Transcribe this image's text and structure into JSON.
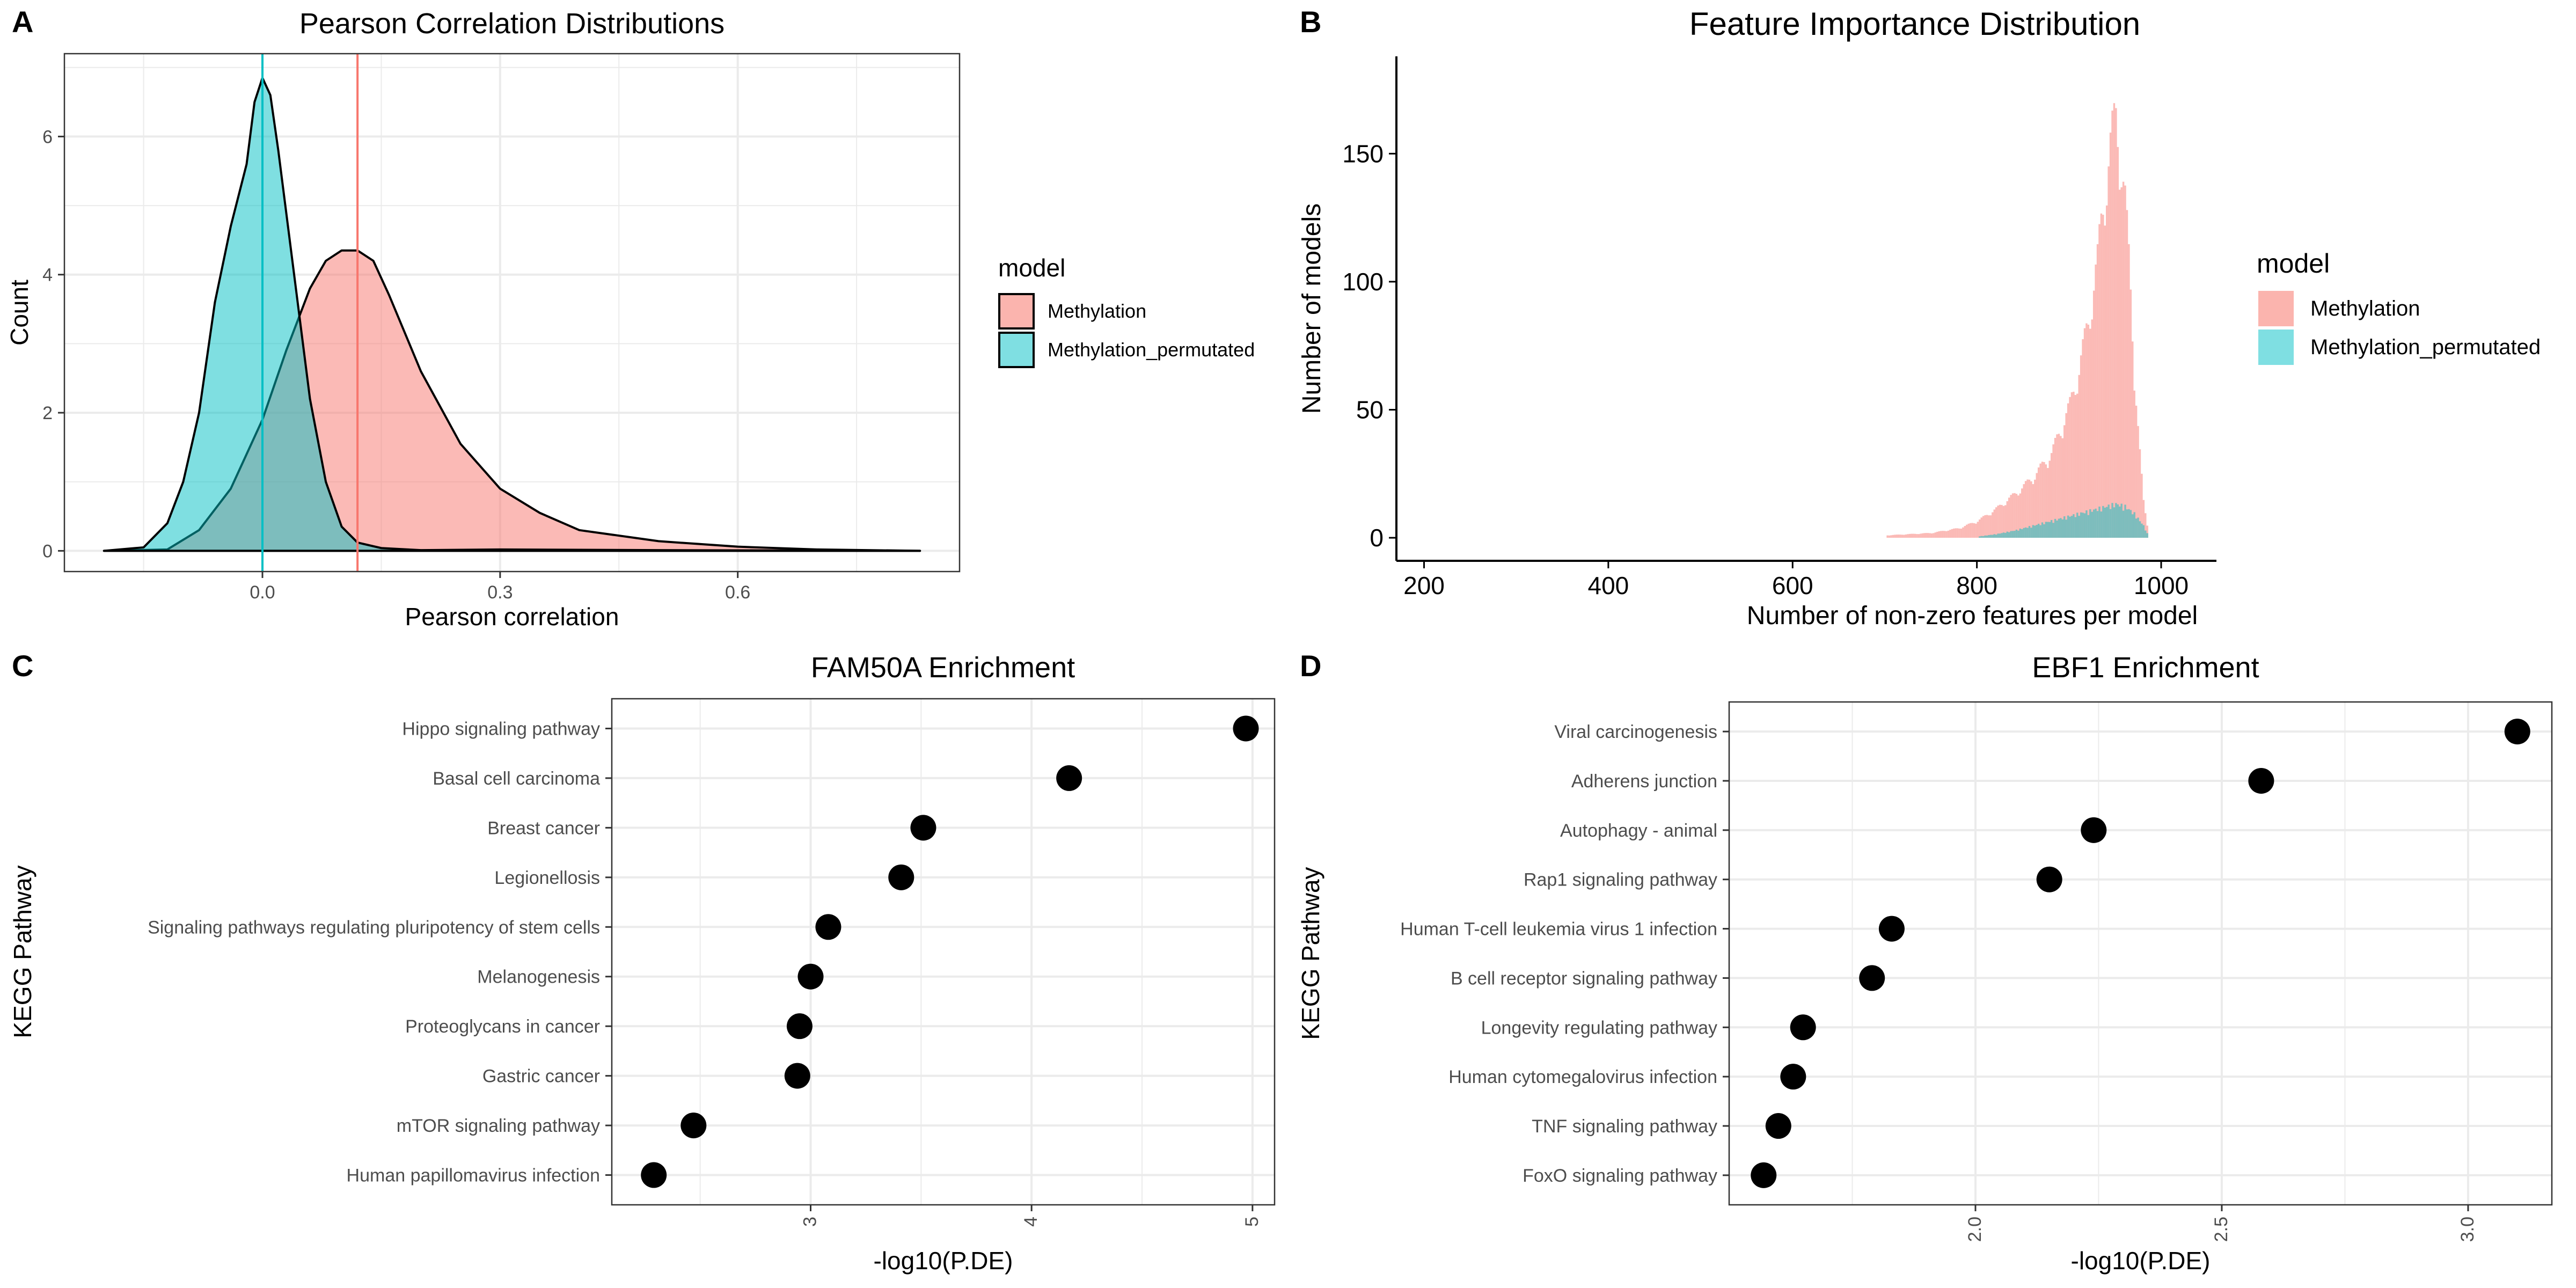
{
  "panels": [
    {
      "label": "A",
      "title": "Pearson Correlation Distributions"
    },
    {
      "label": "B",
      "title": "Feature Importance Distribution"
    },
    {
      "label": "C",
      "title": "FAM50A Enrichment"
    },
    {
      "label": "D",
      "title": "EBF1 Enrichment"
    }
  ],
  "colors": {
    "methylation": "#F8766D",
    "methylation_permutated": "#00BFC4",
    "methylation_fill": "#FBB4AE",
    "permutated_fill": "#7FDFE2",
    "overlap_fill": "#7DB7B4",
    "grid": "#EBEBEB",
    "point": "#000000"
  },
  "chart_data": [
    {
      "type": "area",
      "title": "Pearson Correlation Distributions",
      "xlabel": "Pearson correlation",
      "ylabel": "Count",
      "xlim": [
        -0.25,
        0.88
      ],
      "ylim": [
        -0.3,
        7.2
      ],
      "xticks": [
        "0.0",
        "0.3",
        "0.6"
      ],
      "xtick_values": [
        0,
        0.3,
        0.6
      ],
      "yticks": [
        "0",
        "2",
        "4",
        "6"
      ],
      "ytick_values": [
        0,
        2,
        4,
        6
      ],
      "grid": true,
      "legend": {
        "title": "model",
        "placement": "right",
        "entries": [
          "Methylation",
          "Methylation_permutated"
        ]
      },
      "vlines": [
        {
          "series": "Methylation",
          "x": 0.12
        },
        {
          "series": "Methylation_permutated",
          "x": 0.0
        }
      ],
      "series": [
        {
          "name": "Methylation",
          "x": [
            -0.2,
            -0.12,
            -0.08,
            -0.04,
            0.0,
            0.03,
            0.06,
            0.08,
            0.1,
            0.12,
            0.14,
            0.16,
            0.2,
            0.25,
            0.3,
            0.35,
            0.4,
            0.5,
            0.6,
            0.7,
            0.83
          ],
          "y": [
            0,
            0.02,
            0.3,
            0.9,
            1.9,
            2.9,
            3.8,
            4.2,
            4.35,
            4.35,
            4.2,
            3.7,
            2.6,
            1.55,
            0.9,
            0.55,
            0.3,
            0.14,
            0.06,
            0.02,
            0
          ]
        },
        {
          "name": "Methylation_permutated",
          "x": [
            -0.2,
            -0.15,
            -0.12,
            -0.1,
            -0.08,
            -0.06,
            -0.04,
            -0.02,
            -0.01,
            0.0,
            0.01,
            0.02,
            0.04,
            0.06,
            0.08,
            0.1,
            0.12,
            0.15,
            0.2,
            0.3,
            0.5,
            0.83
          ],
          "y": [
            0,
            0.05,
            0.4,
            1.0,
            2.0,
            3.6,
            4.7,
            5.6,
            6.5,
            6.85,
            6.6,
            5.8,
            4.0,
            2.2,
            1.0,
            0.35,
            0.12,
            0.04,
            0.01,
            0.02,
            0.01,
            0
          ]
        }
      ]
    },
    {
      "type": "bar",
      "title": "Feature Importance Distribution",
      "xlabel": "Number of non-zero features per model",
      "ylabel": "Number of models",
      "xlim": [
        170,
        1060
      ],
      "ylim": [
        -9,
        188
      ],
      "xticks": [
        "200",
        "400",
        "600",
        "800",
        "1000"
      ],
      "xtick_values": [
        200,
        400,
        600,
        800,
        1000
      ],
      "yticks": [
        "0",
        "50",
        "100",
        "150"
      ],
      "ytick_values": [
        0,
        50,
        100,
        150
      ],
      "grid": false,
      "legend": {
        "title": "model",
        "placement": "right",
        "entries": [
          "Methylation",
          "Methylation_permutated"
        ]
      },
      "series": [
        {
          "name": "Methylation",
          "x": [
            700,
            750,
            780,
            800,
            820,
            840,
            860,
            880,
            900,
            910,
            920,
            930,
            935,
            940,
            945,
            950,
            955,
            960,
            965,
            970,
            975,
            980,
            985
          ],
          "y": [
            1,
            2,
            4,
            7,
            12,
            18,
            25,
            35,
            55,
            70,
            90,
            115,
            135,
            150,
            165,
            175,
            160,
            140,
            110,
            70,
            40,
            15,
            3
          ]
        },
        {
          "name": "Methylation_permutated",
          "x": [
            800,
            820,
            840,
            860,
            880,
            900,
            920,
            940,
            950,
            960,
            970,
            980,
            985
          ],
          "y": [
            0.5,
            1.5,
            3,
            5,
            7,
            9,
            11,
            13,
            14,
            13,
            10,
            5,
            1
          ]
        }
      ]
    },
    {
      "type": "scatter",
      "title": "FAM50A Enrichment",
      "xlabel": "-log10(P.DE)",
      "ylabel": "KEGG Pathway",
      "xlim": [
        2.1,
        5.1
      ],
      "xticks": [
        "3",
        "4",
        "5"
      ],
      "xtick_values": [
        3,
        4,
        5
      ],
      "grid": true,
      "categories": [
        "Hippo signaling pathway",
        "Basal cell carcinoma",
        "Breast cancer",
        "Legionellosis",
        "Signaling pathways regulating pluripotency of stem cells",
        "Melanogenesis",
        "Proteoglycans in cancer",
        "Gastric cancer",
        "mTOR signaling pathway",
        "Human papillomavirus infection"
      ],
      "values": [
        4.97,
        4.17,
        3.51,
        3.41,
        3.08,
        3.0,
        2.95,
        2.94,
        2.47,
        2.29
      ]
    },
    {
      "type": "scatter",
      "title": "EBF1 Enrichment",
      "xlabel": "-log10(P.DE)",
      "ylabel": "KEGG Pathway",
      "xlim": [
        1.5,
        3.17
      ],
      "xticks": [
        "2.0",
        "2.5",
        "3.0"
      ],
      "xtick_values": [
        2.0,
        2.5,
        3.0
      ],
      "grid": true,
      "categories": [
        "Viral carcinogenesis",
        "Adherens junction",
        "Autophagy - animal",
        "Rap1 signaling pathway",
        "Human T-cell leukemia virus 1 infection",
        "B cell receptor signaling pathway",
        "Longevity regulating pathway",
        "Human cytomegalovirus infection",
        "TNF signaling pathway",
        "FoxO signaling pathway"
      ],
      "values": [
        3.1,
        2.58,
        2.24,
        2.15,
        1.83,
        1.79,
        1.65,
        1.63,
        1.6,
        1.57
      ]
    }
  ]
}
